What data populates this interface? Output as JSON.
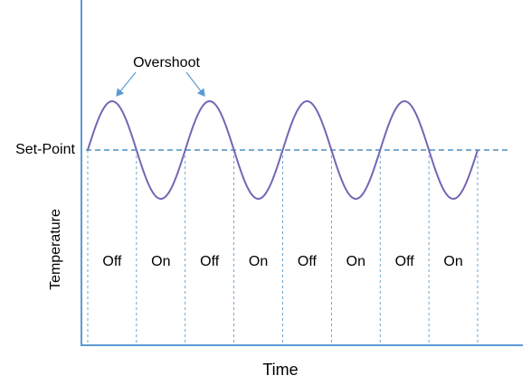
{
  "annotation": "Overshoot",
  "setpoint_label": "Set-Point",
  "y_axis_label": "Temperature",
  "x_axis_label": "Time",
  "phases": [
    "Off",
    "On",
    "Off",
    "On",
    "Off",
    "On",
    "Off",
    "On"
  ]
}
